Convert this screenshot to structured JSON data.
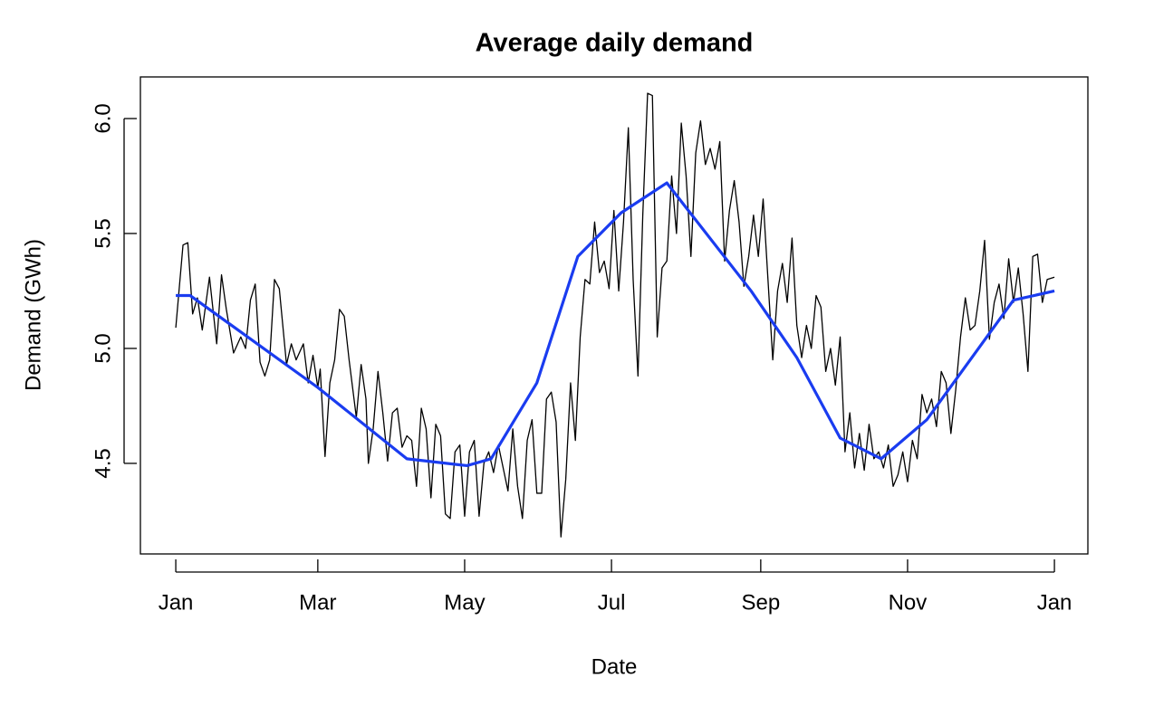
{
  "chart_data": {
    "type": "line",
    "title": "Average daily demand",
    "x_label": "Date",
    "y_label": "Demand (GWh)",
    "xlim": [
      -14.7,
      378.9
    ],
    "ylim": [
      4.106,
      6.181
    ],
    "xticks": [
      {
        "value": 0,
        "label": "Jan"
      },
      {
        "value": 59,
        "label": "Mar"
      },
      {
        "value": 120,
        "label": "May"
      },
      {
        "value": 181,
        "label": "Jul"
      },
      {
        "value": 243,
        "label": "Sep"
      },
      {
        "value": 304,
        "label": "Nov"
      },
      {
        "value": 365,
        "label": "Jan"
      }
    ],
    "yticks": [
      4.5,
      {
        "value": 5,
        "label": "5.0"
      },
      5.5,
      {
        "value": 6,
        "label": "6.0"
      }
    ],
    "grid": false,
    "series": [
      {
        "color": "#000000",
        "width": 1.3,
        "x": [
          0,
          3,
          5,
          7,
          9,
          11,
          14,
          17,
          19,
          21,
          24,
          27,
          29,
          31,
          33,
          35,
          37,
          39,
          41,
          43,
          46,
          48,
          50,
          53,
          55,
          57,
          59,
          60,
          62,
          64,
          66,
          68,
          70,
          72,
          75,
          77,
          79,
          80,
          82,
          84,
          86,
          88,
          90,
          92,
          94,
          96,
          98,
          100,
          102,
          104,
          106,
          108,
          110,
          112,
          114,
          116,
          118,
          120,
          122,
          124,
          126,
          128,
          130,
          132,
          134,
          136,
          138,
          140,
          142,
          144,
          146,
          148,
          150,
          152,
          154,
          156,
          158,
          160,
          162,
          164,
          166,
          168,
          170,
          172,
          174,
          176,
          178,
          180,
          182,
          184,
          186,
          188,
          190,
          192,
          194,
          196,
          198,
          200,
          202,
          204,
          206,
          208,
          210,
          212,
          214,
          216,
          218,
          220,
          222,
          224,
          226,
          228,
          230,
          232,
          234,
          236,
          238,
          240,
          242,
          244,
          246,
          248,
          250,
          252,
          254,
          256,
          258,
          260,
          262,
          264,
          266,
          268,
          270,
          272,
          274,
          276,
          278,
          280,
          282,
          284,
          286,
          288,
          290,
          292,
          294,
          296,
          298,
          300,
          302,
          304,
          306,
          308,
          310,
          312,
          314,
          316,
          318,
          320,
          322,
          324,
          326,
          328,
          330,
          332,
          334,
          336,
          338,
          340,
          342,
          344,
          346,
          348,
          350,
          352,
          354,
          356,
          358,
          360,
          362,
          365
        ],
        "values": [
          5.09,
          5.45,
          5.46,
          5.15,
          5.22,
          5.08,
          5.31,
          5.02,
          5.32,
          5.17,
          4.98,
          5.05,
          5.0,
          5.21,
          5.28,
          4.94,
          4.88,
          4.95,
          5.3,
          5.26,
          4.93,
          5.02,
          4.95,
          5.02,
          4.85,
          4.97,
          4.83,
          4.91,
          4.53,
          4.85,
          4.95,
          5.17,
          5.14,
          4.95,
          4.7,
          4.93,
          4.78,
          4.5,
          4.65,
          4.9,
          4.72,
          4.51,
          4.72,
          4.74,
          4.57,
          4.62,
          4.6,
          4.4,
          4.74,
          4.65,
          4.35,
          4.67,
          4.62,
          4.28,
          4.26,
          4.55,
          4.58,
          4.27,
          4.55,
          4.6,
          4.27,
          4.5,
          4.55,
          4.46,
          4.58,
          4.48,
          4.38,
          4.65,
          4.4,
          4.26,
          4.6,
          4.69,
          4.37,
          4.37,
          4.78,
          4.81,
          4.68,
          4.18,
          4.43,
          4.85,
          4.6,
          5.05,
          5.3,
          5.28,
          5.55,
          5.33,
          5.38,
          5.26,
          5.6,
          5.25,
          5.55,
          5.96,
          5.3,
          4.88,
          5.58,
          6.11,
          6.1,
          5.05,
          5.35,
          5.38,
          5.75,
          5.5,
          5.98,
          5.75,
          5.4,
          5.85,
          5.99,
          5.8,
          5.87,
          5.78,
          5.9,
          5.38,
          5.6,
          5.73,
          5.55,
          5.27,
          5.4,
          5.58,
          5.4,
          5.65,
          5.3,
          4.95,
          5.25,
          5.37,
          5.2,
          5.48,
          5.1,
          4.96,
          5.1,
          5.0,
          5.23,
          5.18,
          4.9,
          5.0,
          4.84,
          5.05,
          4.55,
          4.72,
          4.48,
          4.63,
          4.47,
          4.67,
          4.52,
          4.55,
          4.48,
          4.58,
          4.4,
          4.45,
          4.55,
          4.42,
          4.6,
          4.52,
          4.8,
          4.72,
          4.78,
          4.66,
          4.9,
          4.85,
          4.63,
          4.82,
          5.05,
          5.22,
          5.08,
          5.1,
          5.25,
          5.47,
          5.04,
          5.2,
          5.28,
          5.13,
          5.39,
          5.2,
          5.35,
          5.15,
          4.9,
          5.4,
          5.41,
          5.2,
          5.3,
          5.31
        ]
      },
      {
        "color": "#1a3cf0",
        "width": 3.2,
        "x": [
          0,
          6,
          59,
          96,
          121,
          131,
          150,
          167,
          185,
          204,
          239,
          258,
          276,
          293,
          312,
          348,
          365
        ],
        "values": [
          5.23,
          5.23,
          4.83,
          4.52,
          4.49,
          4.52,
          4.85,
          5.4,
          5.59,
          5.72,
          5.25,
          4.96,
          4.61,
          4.52,
          4.69,
          5.21,
          5.25
        ]
      }
    ]
  }
}
